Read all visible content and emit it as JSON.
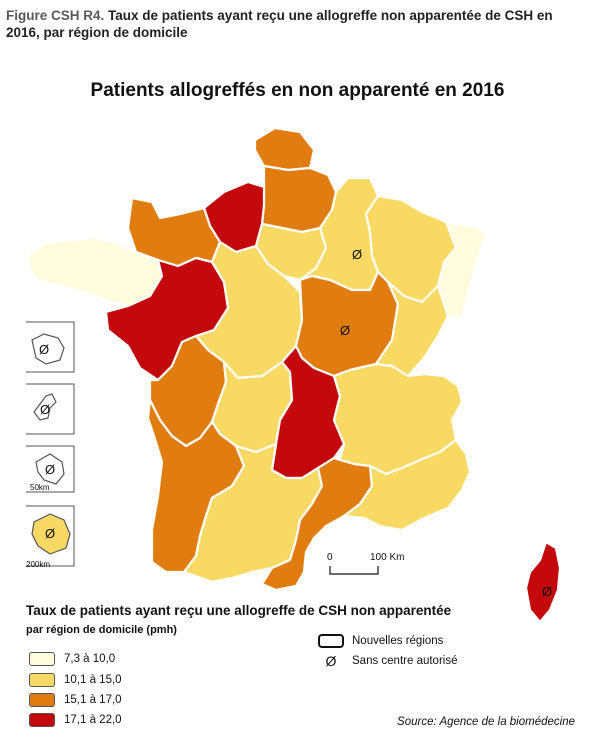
{
  "caption": {
    "label": "Figure CSH R4.",
    "text": "Taux de patients ayant reçu une allogreffe non apparentée de CSH en 2016, par région de domicile"
  },
  "map_title": "Patients allogreffés en non apparenté en 2016",
  "scale_bar": {
    "start": "0",
    "end": "100 Km"
  },
  "inset_scales": {
    "small": "50km",
    "large": "200km"
  },
  "legend": {
    "title": "Taux de patients ayant reçu une allogreffe de CSH non apparentée",
    "subtitle": "par région de domicile (pmh)",
    "classes": [
      {
        "label": "7,3 à 10,0",
        "color": "#fffbdc"
      },
      {
        "label": "10,1 à 15,0",
        "color": "#f8d964"
      },
      {
        "label": "15,1 à 17,0",
        "color": "#e17d10"
      },
      {
        "label": "17,1 à 22,0",
        "color": "#c4090c"
      }
    ]
  },
  "key": {
    "regions_label": "Nouvelles régions",
    "no_center_label": "Sans centre autorisé",
    "no_center_symbol": "Ø"
  },
  "source": "Source: Agence de la biomédecine",
  "regions": [
    {
      "name": "Nord-Pas-de-Calais",
      "class": 2
    },
    {
      "name": "Picardie",
      "class": 2
    },
    {
      "name": "Haute-Normandie",
      "class": 3
    },
    {
      "name": "Basse-Normandie",
      "class": 2
    },
    {
      "name": "Bretagne",
      "class": 0
    },
    {
      "name": "Pays de la Loire",
      "class": 3
    },
    {
      "name": "Centre",
      "class": 1
    },
    {
      "name": "Île-de-France",
      "class": 1
    },
    {
      "name": "Champagne-Ardenne",
      "class": 1,
      "no_center": true
    },
    {
      "name": "Lorraine",
      "class": 1
    },
    {
      "name": "Alsace",
      "class": 0
    },
    {
      "name": "Bourgogne",
      "class": 2,
      "no_center": true
    },
    {
      "name": "Franche-Comté",
      "class": 1
    },
    {
      "name": "Poitou-Charentes",
      "class": 2
    },
    {
      "name": "Limousin",
      "class": 1
    },
    {
      "name": "Auvergne",
      "class": 3
    },
    {
      "name": "Rhône-Alpes",
      "class": 1
    },
    {
      "name": "Aquitaine",
      "class": 2
    },
    {
      "name": "Midi-Pyrénées",
      "class": 1
    },
    {
      "name": "Languedoc-Roussillon",
      "class": 2
    },
    {
      "name": "Provence-Alpes-Côte d'Azur",
      "class": 1
    },
    {
      "name": "Corse",
      "class": 3,
      "no_center": true
    },
    {
      "name": "Guadeloupe",
      "class": null,
      "no_center": true
    },
    {
      "name": "Martinique",
      "class": null,
      "no_center": true
    },
    {
      "name": "Guyane",
      "class": null,
      "no_center": true
    },
    {
      "name": "La Réunion",
      "class": 1,
      "no_center": true
    }
  ]
}
